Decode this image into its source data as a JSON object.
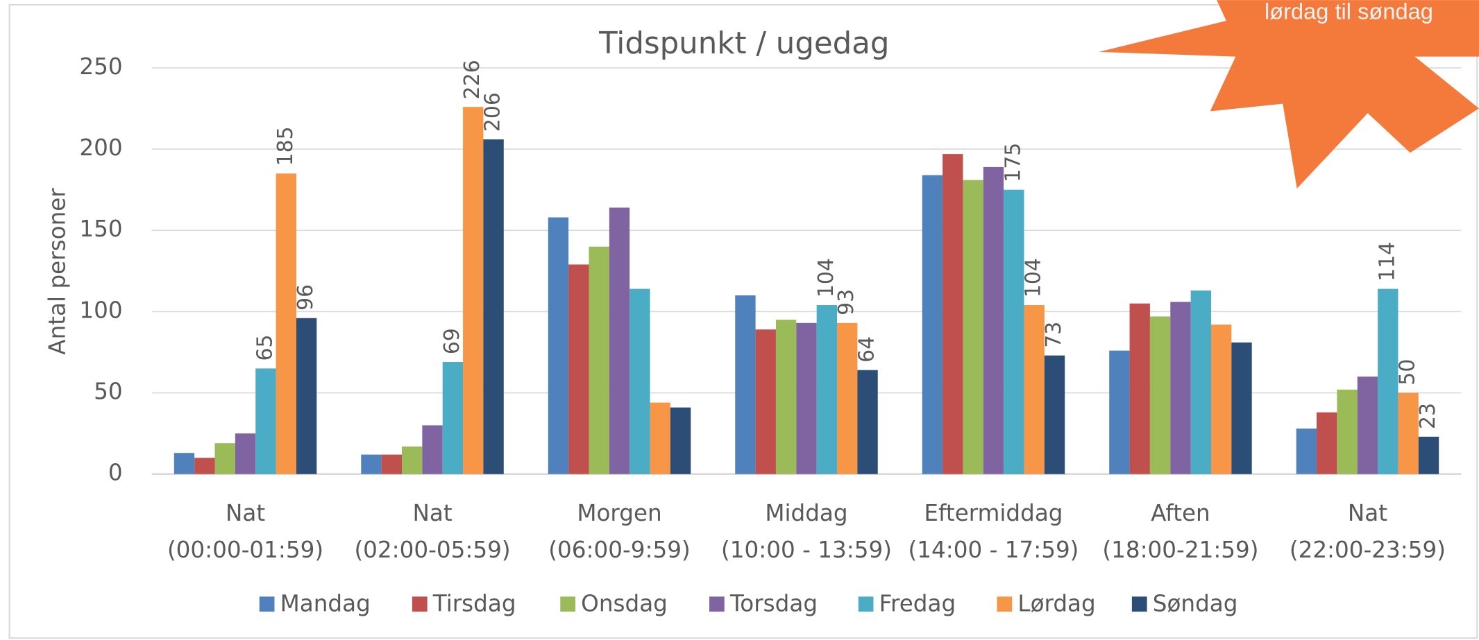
{
  "chart_data": {
    "type": "bar",
    "title": "Tidspunkt / ugedag",
    "y_label": "Antal personer",
    "categories": [
      [
        "Nat",
        "(00:00-01:59)"
      ],
      [
        "Nat",
        "(02:00-05:59)"
      ],
      [
        "Morgen",
        "(06:00-9:59)"
      ],
      [
        "Middag",
        "(10:00 - 13:59)"
      ],
      [
        "Eftermiddag",
        "(14:00 - 17:59)"
      ],
      [
        "Aften",
        "(18:00-21:59)"
      ],
      [
        "Nat",
        "(22:00-23:59)"
      ]
    ],
    "series": [
      {
        "name": "Mandag",
        "color": "#4f81bd",
        "values": [
          13,
          12,
          158,
          110,
          184,
          76,
          28
        ],
        "value_labels": [
          null,
          null,
          null,
          null,
          null,
          null,
          null
        ]
      },
      {
        "name": "Tirsdag",
        "color": "#c0504d",
        "values": [
          10,
          12,
          129,
          89,
          197,
          105,
          38
        ],
        "value_labels": [
          null,
          null,
          null,
          null,
          null,
          null,
          null
        ]
      },
      {
        "name": "Onsdag",
        "color": "#9bbb59",
        "values": [
          19,
          17,
          140,
          95,
          181,
          97,
          52
        ],
        "value_labels": [
          null,
          null,
          null,
          null,
          null,
          null,
          null
        ]
      },
      {
        "name": "Torsdag",
        "color": "#8064a2",
        "values": [
          25,
          30,
          164,
          93,
          189,
          106,
          60
        ],
        "value_labels": [
          null,
          null,
          null,
          null,
          null,
          null,
          null
        ]
      },
      {
        "name": "Fredag",
        "color": "#4bacc6",
        "values": [
          65,
          69,
          114,
          104,
          175,
          113,
          114
        ],
        "value_labels": [
          "65",
          "69",
          null,
          "104",
          "175",
          null,
          "114"
        ]
      },
      {
        "name": "Lørdag",
        "color": "#f79646",
        "values": [
          185,
          226,
          44,
          93,
          104,
          92,
          50
        ],
        "value_labels": [
          "185",
          "226",
          null,
          "93",
          "104",
          null,
          "50"
        ]
      },
      {
        "name": "Søndag",
        "color": "#2c4d75",
        "values": [
          96,
          206,
          41,
          64,
          73,
          81,
          23
        ],
        "value_labels": [
          "96",
          "206",
          null,
          "64",
          "73",
          null,
          "23"
        ]
      }
    ],
    "ylim": [
      0,
      250
    ],
    "yticks": [
      0,
      50,
      100,
      150,
      200,
      250
    ],
    "grid": true,
    "legend": "bottom",
    "annotations": [
      {
        "text": "lørdag til søndag",
        "color": "#f47a3c"
      }
    ]
  }
}
